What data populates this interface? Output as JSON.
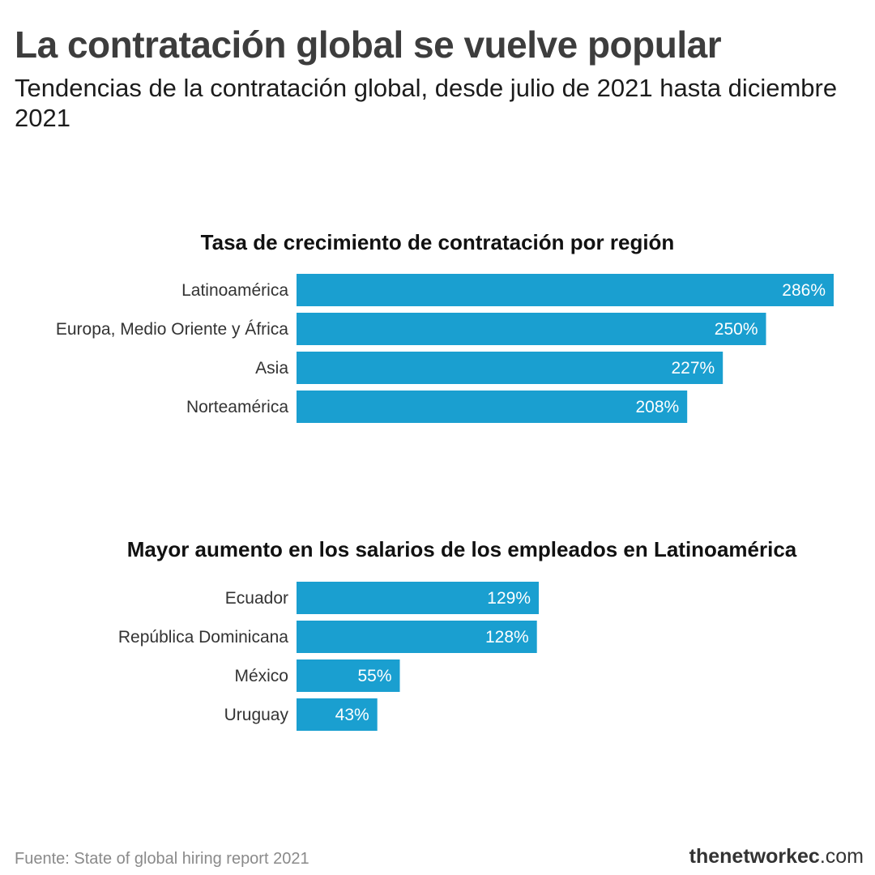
{
  "header": {
    "title": "La contratación global se vuelve popular",
    "subtitle": "Tendencias de la contratación global, desde julio de 2021 hasta diciembre 2021"
  },
  "chart_data": [
    {
      "type": "bar",
      "orientation": "horizontal",
      "title": "Tasa de crecimiento de contratación por región",
      "categories": [
        "Latinoamérica",
        "Europa, Medio Oriente y África",
        "Asia",
        "Norteamérica"
      ],
      "values": [
        286,
        250,
        227,
        208
      ],
      "value_labels": [
        "286%",
        "250%",
        "227%",
        "208%"
      ],
      "xlim": [
        0,
        286
      ],
      "bar_color": "#1a9fd0",
      "grid": false,
      "axes_visible": false
    },
    {
      "type": "bar",
      "orientation": "horizontal",
      "title": "Mayor aumento en los salarios de los empleados en Latinoamérica",
      "categories": [
        "Ecuador",
        "República Dominicana",
        "México",
        "Uruguay"
      ],
      "values": [
        129,
        128,
        55,
        43
      ],
      "value_labels": [
        "129%",
        "128%",
        "55%",
        "43%"
      ],
      "xlim": [
        0,
        286
      ],
      "bar_color": "#1a9fd0",
      "grid": false,
      "axes_visible": false
    }
  ],
  "footer": {
    "source": "Fuente: State of global hiring report 2021",
    "brand_bold": "thenetworkec",
    "brand_rest": ".com"
  }
}
